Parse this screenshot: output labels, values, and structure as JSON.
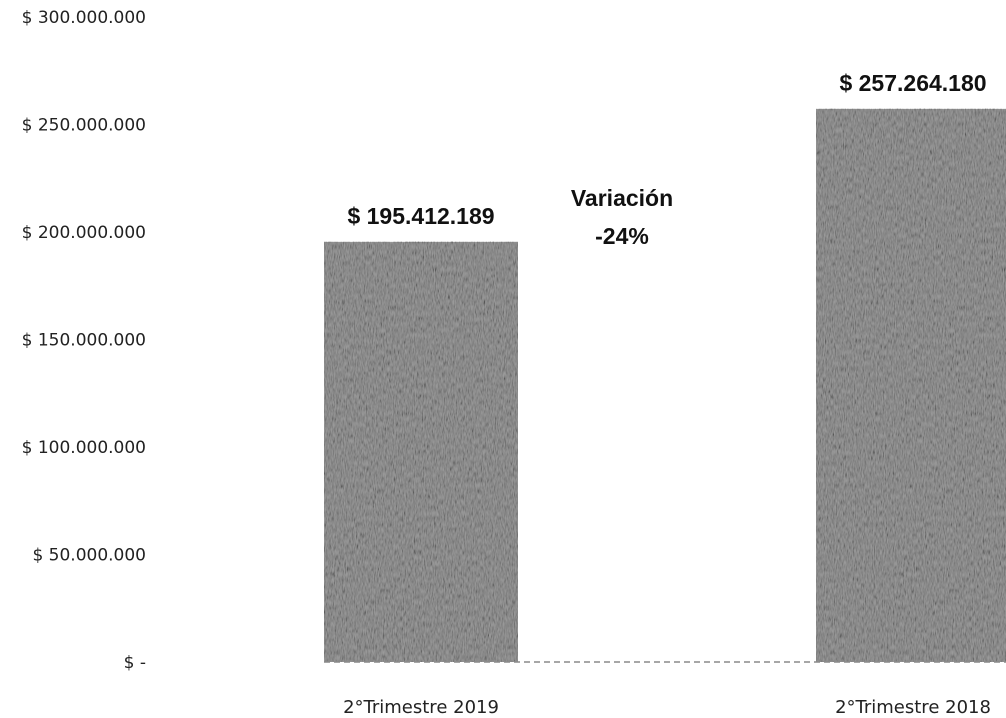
{
  "chart_data": {
    "type": "bar",
    "categories": [
      "2°Trimestre 2019",
      "2°Trimestre 2018"
    ],
    "values": [
      195412189,
      257264180
    ],
    "data_labels": [
      "$ 195.412.189",
      "$ 257.264.180"
    ],
    "ylim": [
      0,
      300000000
    ],
    "yticks": [
      0,
      50000000,
      100000000,
      150000000,
      200000000,
      250000000,
      300000000
    ],
    "ytick_labels": [
      "$ -",
      "$ 50.000.000",
      "$ 100.000.000",
      "$ 150.000.000",
      "$ 200.000.000",
      "$ 250.000.000",
      "$ 300.000.000"
    ],
    "annotation": {
      "line1": "Variación",
      "line2": "-24%"
    },
    "grid": false,
    "legend": "none",
    "bar_color": "#9a9a9a"
  }
}
